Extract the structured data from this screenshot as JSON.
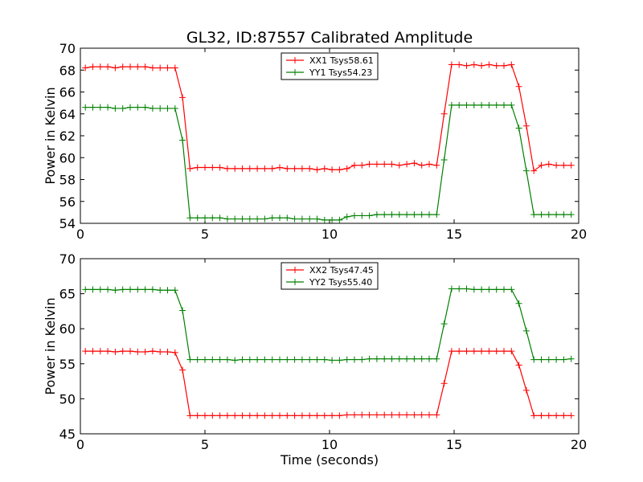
{
  "chart_data": [
    {
      "type": "line",
      "title": "GL32, ID:87557 Calibrated Amplitude",
      "xlabel": "",
      "ylabel": "Power in Kelvin",
      "xlim": [
        0,
        20
      ],
      "ylim": [
        54,
        70
      ],
      "xticks": [
        0,
        5,
        10,
        15,
        20
      ],
      "yticks": [
        54,
        56,
        58,
        60,
        62,
        64,
        66,
        68,
        70
      ],
      "grid": false,
      "legend_position": "top-center",
      "x": [
        0.2,
        0.5,
        0.8,
        1.1,
        1.4,
        1.7,
        2.0,
        2.3,
        2.6,
        2.9,
        3.2,
        3.5,
        3.8,
        4.1,
        4.4,
        4.7,
        5.0,
        5.3,
        5.6,
        5.9,
        6.2,
        6.5,
        6.8,
        7.1,
        7.4,
        7.7,
        8.0,
        8.3,
        8.6,
        8.9,
        9.2,
        9.5,
        9.8,
        10.1,
        10.4,
        10.7,
        11.0,
        11.3,
        11.6,
        11.9,
        12.2,
        12.5,
        12.8,
        13.1,
        13.4,
        13.7,
        14.0,
        14.3,
        14.6,
        14.9,
        15.2,
        15.5,
        15.8,
        16.1,
        16.4,
        16.7,
        17.0,
        17.3,
        17.6,
        17.9,
        18.2,
        18.5,
        18.8,
        19.1,
        19.4,
        19.7
      ],
      "series": [
        {
          "name": "XX1 Tsys58.61",
          "color": "#ff0000",
          "values": [
            68.2,
            68.3,
            68.3,
            68.3,
            68.2,
            68.3,
            68.3,
            68.3,
            68.3,
            68.2,
            68.2,
            68.2,
            68.2,
            65.5,
            59.0,
            59.1,
            59.1,
            59.1,
            59.1,
            59.0,
            59.0,
            59.0,
            59.0,
            59.0,
            59.0,
            59.0,
            59.1,
            59.0,
            59.0,
            59.0,
            59.0,
            58.9,
            59.0,
            58.9,
            58.9,
            59.0,
            59.3,
            59.3,
            59.4,
            59.4,
            59.4,
            59.4,
            59.3,
            59.4,
            59.5,
            59.3,
            59.4,
            59.3,
            64.0,
            68.5,
            68.5,
            68.4,
            68.5,
            68.4,
            68.5,
            68.4,
            68.4,
            68.5,
            66.5,
            62.9,
            58.8,
            59.3,
            59.4,
            59.3,
            59.3,
            59.3
          ]
        },
        {
          "name": "YY1 Tsys54.23",
          "color": "#008000",
          "values": [
            64.6,
            64.6,
            64.6,
            64.6,
            64.5,
            64.5,
            64.6,
            64.6,
            64.6,
            64.5,
            64.5,
            64.5,
            64.5,
            61.6,
            54.5,
            54.5,
            54.5,
            54.5,
            54.5,
            54.4,
            54.4,
            54.4,
            54.4,
            54.4,
            54.4,
            54.5,
            54.5,
            54.5,
            54.4,
            54.4,
            54.4,
            54.4,
            54.3,
            54.3,
            54.3,
            54.6,
            54.7,
            54.7,
            54.7,
            54.8,
            54.8,
            54.8,
            54.8,
            54.8,
            54.8,
            54.8,
            54.8,
            54.8,
            59.8,
            64.8,
            64.8,
            64.8,
            64.8,
            64.8,
            64.8,
            64.8,
            64.8,
            64.8,
            62.7,
            58.8,
            54.8,
            54.8,
            54.8,
            54.8,
            54.8,
            54.8
          ]
        }
      ]
    },
    {
      "type": "line",
      "title": "",
      "xlabel": "Time (seconds)",
      "ylabel": "Power in Kelvin",
      "xlim": [
        0,
        20
      ],
      "ylim": [
        45,
        70
      ],
      "xticks": [
        0,
        5,
        10,
        15,
        20
      ],
      "yticks": [
        45,
        50,
        55,
        60,
        65,
        70
      ],
      "grid": false,
      "legend_position": "top-center",
      "x": [
        0.2,
        0.5,
        0.8,
        1.1,
        1.4,
        1.7,
        2.0,
        2.3,
        2.6,
        2.9,
        3.2,
        3.5,
        3.8,
        4.1,
        4.4,
        4.7,
        5.0,
        5.3,
        5.6,
        5.9,
        6.2,
        6.5,
        6.8,
        7.1,
        7.4,
        7.7,
        8.0,
        8.3,
        8.6,
        8.9,
        9.2,
        9.5,
        9.8,
        10.1,
        10.4,
        10.7,
        11.0,
        11.3,
        11.6,
        11.9,
        12.2,
        12.5,
        12.8,
        13.1,
        13.4,
        13.7,
        14.0,
        14.3,
        14.6,
        14.9,
        15.2,
        15.5,
        15.8,
        16.1,
        16.4,
        16.7,
        17.0,
        17.3,
        17.6,
        17.9,
        18.2,
        18.5,
        18.8,
        19.1,
        19.4,
        19.7
      ],
      "series": [
        {
          "name": "XX2 Tsys47.45",
          "color": "#ff0000",
          "values": [
            56.8,
            56.8,
            56.8,
            56.8,
            56.7,
            56.8,
            56.8,
            56.7,
            56.7,
            56.8,
            56.7,
            56.7,
            56.6,
            54.1,
            47.6,
            47.6,
            47.6,
            47.6,
            47.6,
            47.6,
            47.6,
            47.6,
            47.6,
            47.6,
            47.6,
            47.6,
            47.6,
            47.6,
            47.6,
            47.6,
            47.6,
            47.6,
            47.6,
            47.6,
            47.6,
            47.7,
            47.7,
            47.7,
            47.7,
            47.7,
            47.7,
            47.7,
            47.7,
            47.7,
            47.7,
            47.7,
            47.7,
            47.7,
            52.2,
            56.8,
            56.8,
            56.8,
            56.8,
            56.8,
            56.8,
            56.8,
            56.8,
            56.8,
            54.8,
            51.2,
            47.6,
            47.6,
            47.6,
            47.6,
            47.6,
            47.6
          ]
        },
        {
          "name": "YY2 Tsys55.40",
          "color": "#008000",
          "values": [
            65.6,
            65.6,
            65.6,
            65.6,
            65.5,
            65.6,
            65.6,
            65.6,
            65.6,
            65.6,
            65.5,
            65.5,
            65.5,
            62.6,
            55.6,
            55.6,
            55.6,
            55.6,
            55.6,
            55.6,
            55.5,
            55.6,
            55.6,
            55.6,
            55.6,
            55.6,
            55.6,
            55.6,
            55.6,
            55.6,
            55.6,
            55.6,
            55.6,
            55.5,
            55.5,
            55.6,
            55.6,
            55.6,
            55.7,
            55.7,
            55.7,
            55.7,
            55.7,
            55.7,
            55.7,
            55.7,
            55.7,
            55.7,
            60.7,
            65.7,
            65.7,
            65.7,
            65.6,
            65.6,
            65.6,
            65.6,
            65.6,
            65.6,
            63.6,
            59.7,
            55.6,
            55.6,
            55.6,
            55.6,
            55.6,
            55.7
          ]
        }
      ]
    }
  ]
}
